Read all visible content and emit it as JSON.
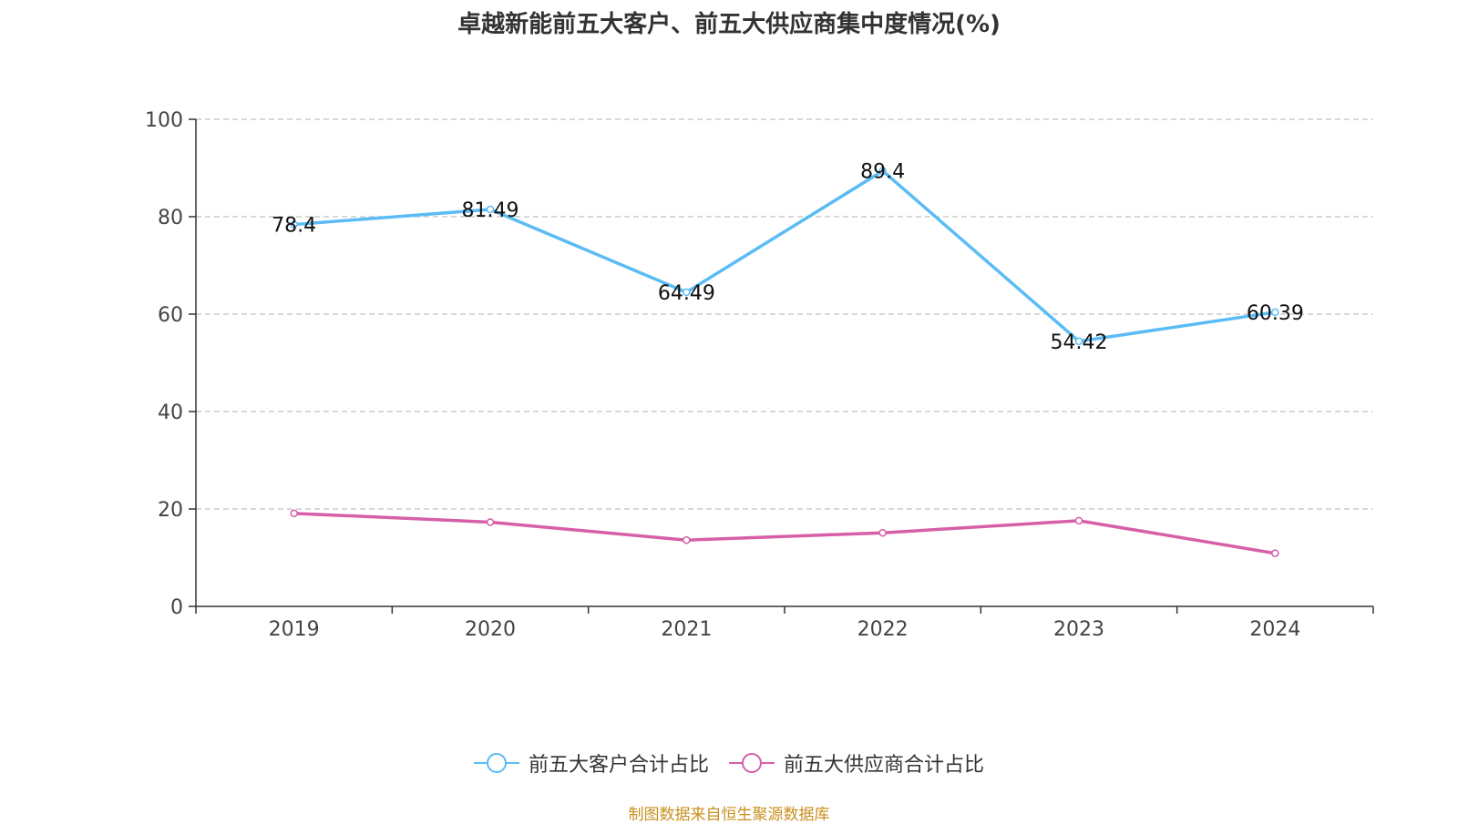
{
  "chart_data": {
    "type": "line",
    "title": "卓越新能前五大客户、前五大供应商集中度情况(%)",
    "categories": [
      "2019",
      "2020",
      "2021",
      "2022",
      "2023",
      "2024"
    ],
    "ylim": [
      0,
      100
    ],
    "yticks": [
      0,
      20,
      40,
      60,
      80,
      100
    ],
    "grid": true,
    "legend_position": "bottom",
    "series": [
      {
        "name": "前五大客户合计占比",
        "color": "#5bbcf5",
        "values": [
          78.4,
          81.49,
          64.49,
          89.4,
          54.42,
          60.39
        ],
        "labels": [
          "78.4",
          "81.49",
          "64.49",
          "89.4",
          "54.42",
          "60.39"
        ]
      },
      {
        "name": "前五大供应商合计占比",
        "color": "#d65fa8",
        "values": [
          19.1,
          17.3,
          13.6,
          15.1,
          17.6,
          10.9
        ]
      }
    ]
  },
  "source": "制图数据来自恒生聚源数据库"
}
